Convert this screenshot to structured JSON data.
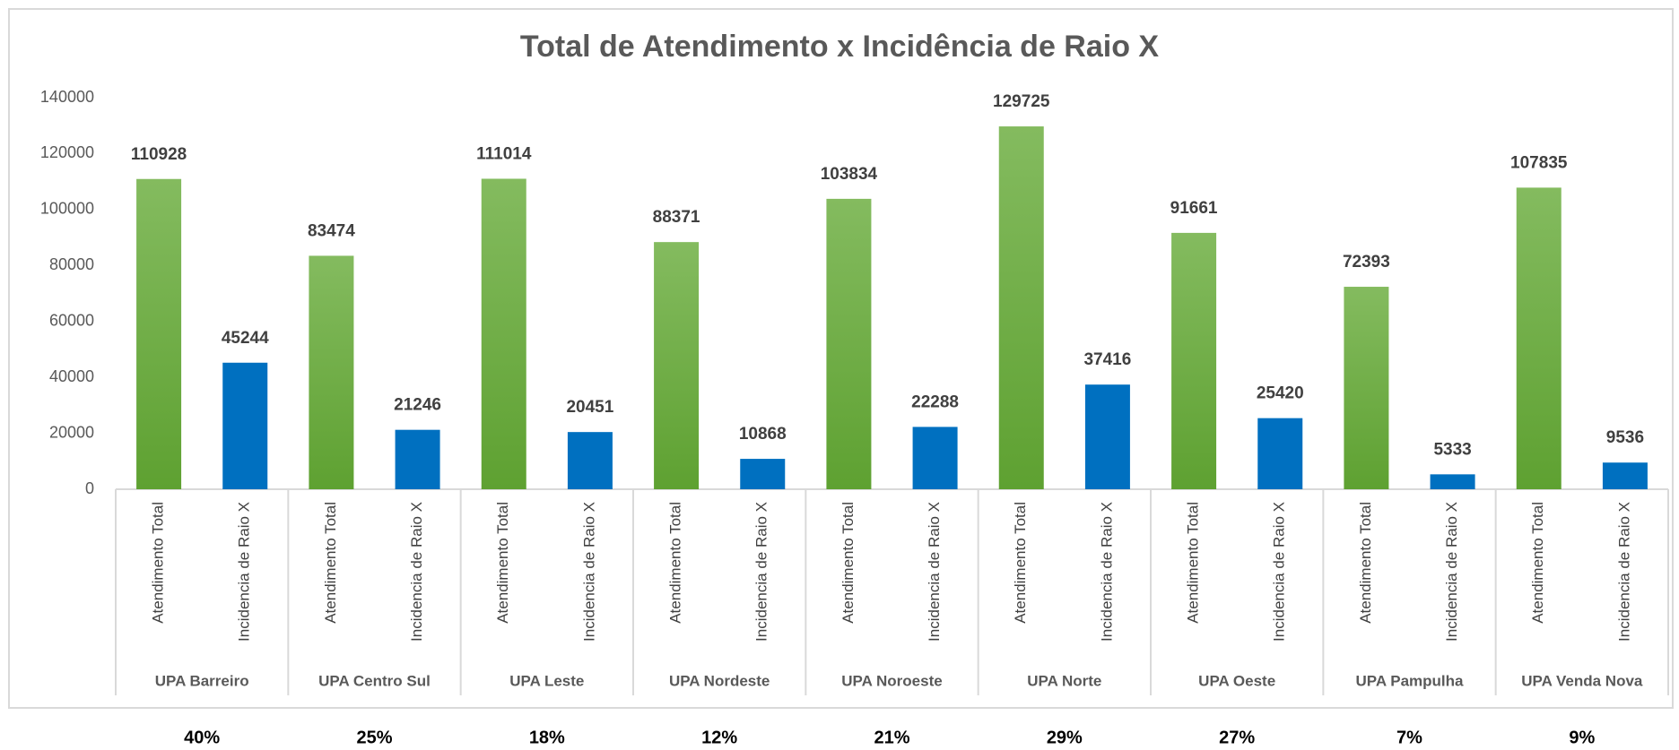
{
  "chart_data": {
    "type": "bar",
    "title": "Total de Atendimento x Incidência de Raio X",
    "categories": [
      "UPA Barreiro",
      "UPA Centro Sul",
      "UPA Leste",
      "UPA Nordeste",
      "UPA Noroeste",
      "UPA Norte",
      "UPA Oeste",
      "UPA Pampulha",
      "UPA Venda Nova"
    ],
    "series": [
      {
        "name": "Atendimento Total",
        "color": "#70ad47",
        "values": [
          110928,
          83474,
          111014,
          88371,
          103834,
          129725,
          91661,
          72393,
          107835
        ]
      },
      {
        "name": "Incidencia de Raio X",
        "color": "#0070c0",
        "values": [
          45244,
          21246,
          20451,
          10868,
          22288,
          37416,
          25420,
          5333,
          9536
        ]
      }
    ],
    "ylim": [
      0,
      140000
    ],
    "yticks": [
      0,
      20000,
      40000,
      60000,
      80000,
      100000,
      120000,
      140000
    ],
    "grid": false,
    "footer_labels": [
      "40%",
      "25%",
      "18%",
      "12%",
      "21%",
      "29%",
      "27%",
      "7%",
      "9%"
    ]
  }
}
